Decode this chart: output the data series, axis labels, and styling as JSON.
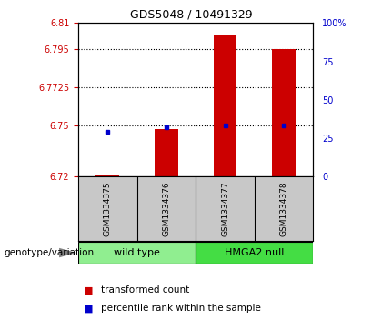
{
  "title": "GDS5048 / 10491329",
  "samples": [
    "GSM1334375",
    "GSM1334376",
    "GSM1334377",
    "GSM1334378"
  ],
  "red_values": [
    6.721,
    6.748,
    6.803,
    6.795
  ],
  "blue_values": [
    6.746,
    6.749,
    6.75,
    6.75
  ],
  "ylim_left": [
    6.72,
    6.81
  ],
  "ylim_right": [
    0,
    100
  ],
  "yticks_left": [
    6.72,
    6.75,
    6.7725,
    6.795,
    6.81
  ],
  "ytick_labels_left": [
    "6.72",
    "6.75",
    "6.7725",
    "6.795",
    "6.81"
  ],
  "yticks_right": [
    0,
    25,
    50,
    75,
    100
  ],
  "ytick_labels_right": [
    "0",
    "25",
    "50",
    "75",
    "100%"
  ],
  "hlines": [
    6.795,
    6.7725,
    6.75
  ],
  "bar_width": 0.4,
  "bar_color": "#CC0000",
  "dot_color": "#0000CC",
  "left_color": "#CC0000",
  "right_color": "#0000CC",
  "legend_labels": [
    "transformed count",
    "percentile rank within the sample"
  ],
  "genotype_label": "genotype/variation",
  "wild_type_color": "#90EE90",
  "hmga2_color": "#44DD44",
  "gray_color": "#C8C8C8",
  "title_fontsize": 9,
  "tick_fontsize": 7,
  "sample_fontsize": 6.5,
  "group_fontsize": 8,
  "legend_fontsize": 7.5,
  "genotype_fontsize": 7.5
}
